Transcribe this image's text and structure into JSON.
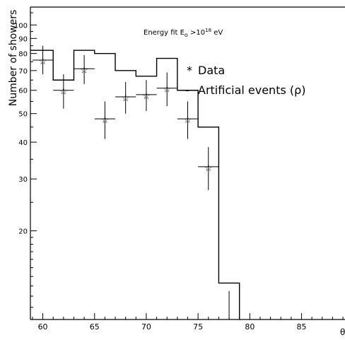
{
  "chart_data": {
    "type": "scatter",
    "title": "",
    "annotation": {
      "main": "Energy fit E",
      "subscript": "o",
      "rest": " >10",
      "superscript": "18",
      "unit": " eV"
    },
    "ylabel": "Number of showers",
    "xlabel_partial": "θ",
    "y_scale": "log",
    "xlim": [
      58.8,
      89.2
    ],
    "ylim": [
      10,
      115
    ],
    "x_ticks": [
      60,
      65,
      70,
      75,
      80,
      85
    ],
    "y_ticks": [
      20,
      30,
      40,
      50,
      60,
      70,
      80,
      90,
      100
    ],
    "legend": {
      "position": "top-right",
      "items": [
        {
          "marker": "*",
          "label": "Data"
        },
        {
          "marker": "-",
          "label": "Artificial events (ρ)"
        }
      ]
    },
    "series": [
      {
        "name": "Data",
        "style": "points-with-errorbars",
        "points": [
          {
            "x": 60,
            "xerr": 1,
            "y": 76,
            "ylo": 68,
            "yhi": 85
          },
          {
            "x": 62,
            "xerr": 1,
            "y": 60,
            "ylo": 52,
            "yhi": 68
          },
          {
            "x": 64,
            "xerr": 1,
            "y": 71,
            "ylo": 63,
            "yhi": 79
          },
          {
            "x": 66,
            "xerr": 1,
            "y": 48,
            "ylo": 41,
            "yhi": 55
          },
          {
            "x": 68,
            "xerr": 1,
            "y": 57,
            "ylo": 50,
            "yhi": 64
          },
          {
            "x": 70,
            "xerr": 1,
            "y": 58,
            "ylo": 51,
            "yhi": 65
          },
          {
            "x": 72,
            "xerr": 1,
            "y": 61,
            "ylo": 53,
            "yhi": 69
          },
          {
            "x": 74,
            "xerr": 1,
            "y": 48,
            "ylo": 41,
            "yhi": 55
          },
          {
            "x": 76,
            "xerr": 1,
            "y": 33,
            "ylo": 27.5,
            "yhi": 38.5
          }
        ]
      },
      {
        "name": "Artificial events (ρ)",
        "style": "histogram-step",
        "bin_edges": [
          58.8,
          61,
          63,
          65,
          67,
          69,
          71,
          73,
          75,
          77,
          79
        ],
        "values": [
          82,
          65,
          82,
          80,
          70,
          67,
          77,
          60,
          45,
          13.3
        ]
      }
    ],
    "extra_marks": [
      {
        "kind": "upper-error-bar",
        "x": 78,
        "ylo": 10,
        "yhi": 12.5
      }
    ]
  }
}
